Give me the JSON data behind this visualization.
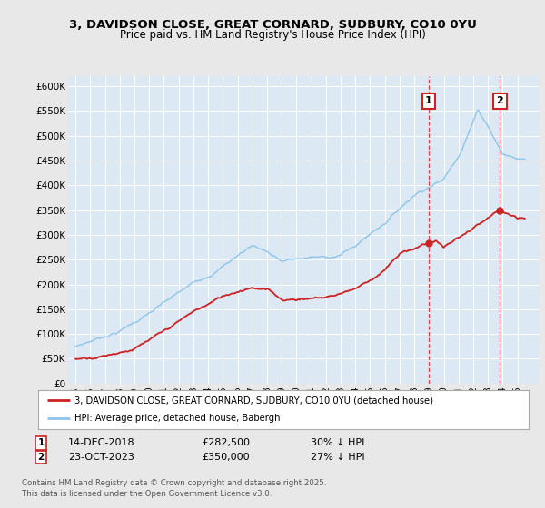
{
  "title_line1": "3, DAVIDSON CLOSE, GREAT CORNARD, SUDBURY, CO10 0YU",
  "title_line2": "Price paid vs. HM Land Registry's House Price Index (HPI)",
  "ylabel_ticks": [
    "£0",
    "£50K",
    "£100K",
    "£150K",
    "£200K",
    "£250K",
    "£300K",
    "£350K",
    "£400K",
    "£450K",
    "£500K",
    "£550K",
    "£600K"
  ],
  "ytick_values": [
    0,
    50000,
    100000,
    150000,
    200000,
    250000,
    300000,
    350000,
    400000,
    450000,
    500000,
    550000,
    600000
  ],
  "xlim": [
    1994.5,
    2026.5
  ],
  "ylim": [
    0,
    620000
  ],
  "hpi_color": "#8ec4e8",
  "price_color": "#cc2222",
  "dashed_color": "#cc2222",
  "background_plot": "#dce9f5",
  "background_fig": "#e8e8e8",
  "grid_color": "#ffffff",
  "transaction1": {
    "date": "14-DEC-2018",
    "price": 282500,
    "year": 2018.96,
    "label": "1",
    "hpi_pct": "30% ↓ HPI"
  },
  "transaction2": {
    "date": "23-OCT-2023",
    "price": 350000,
    "year": 2023.81,
    "label": "2",
    "hpi_pct": "27% ↓ HPI"
  },
  "legend_line1": "3, DAVIDSON CLOSE, GREAT CORNARD, SUDBURY, CO10 0YU (detached house)",
  "legend_line2": "HPI: Average price, detached house, Babergh",
  "footnote": "Contains HM Land Registry data © Crown copyright and database right 2025.\nThis data is licensed under the Open Government Licence v3.0.",
  "xtick_years": [
    1995,
    1996,
    1997,
    1998,
    1999,
    2000,
    2001,
    2002,
    2003,
    2004,
    2005,
    2006,
    2007,
    2008,
    2009,
    2010,
    2011,
    2012,
    2013,
    2014,
    2015,
    2016,
    2017,
    2018,
    2019,
    2020,
    2021,
    2022,
    2023,
    2024,
    2025
  ]
}
